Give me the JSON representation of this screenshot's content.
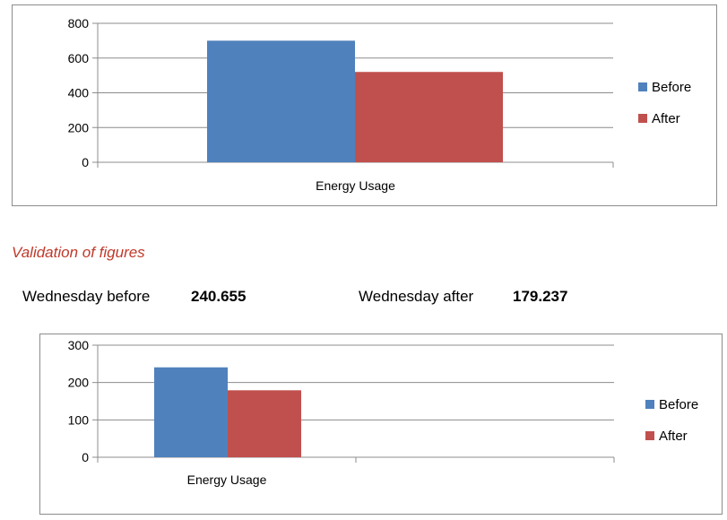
{
  "validation": {
    "heading": "Validation of figures",
    "wednesday_before_label": "Wednesday before",
    "wednesday_before_value": "240.655",
    "wednesday_after_label": "Wednesday after",
    "wednesday_after_value": "179.237"
  },
  "chart_data": [
    {
      "type": "bar",
      "categories": [
        "Energy Usage"
      ],
      "series": [
        {
          "name": "Before",
          "values": [
            700
          ],
          "color": "#4f81bd"
        },
        {
          "name": "After",
          "values": [
            520
          ],
          "color": "#c0504d"
        }
      ],
      "ylim": [
        0,
        800
      ],
      "yticks": [
        "0",
        "200",
        "400",
        "600",
        "800"
      ],
      "grid": true,
      "legend": "right"
    },
    {
      "type": "bar",
      "categories": [
        "Energy Usage",
        ""
      ],
      "series": [
        {
          "name": "Before",
          "values": [
            240.655,
            null
          ],
          "color": "#4f81bd"
        },
        {
          "name": "After",
          "values": [
            179.237,
            null
          ],
          "color": "#c0504d"
        }
      ],
      "ylim": [
        0,
        300
      ],
      "yticks": [
        "0",
        "100",
        "200",
        "300"
      ],
      "grid": true,
      "legend": "right"
    }
  ]
}
